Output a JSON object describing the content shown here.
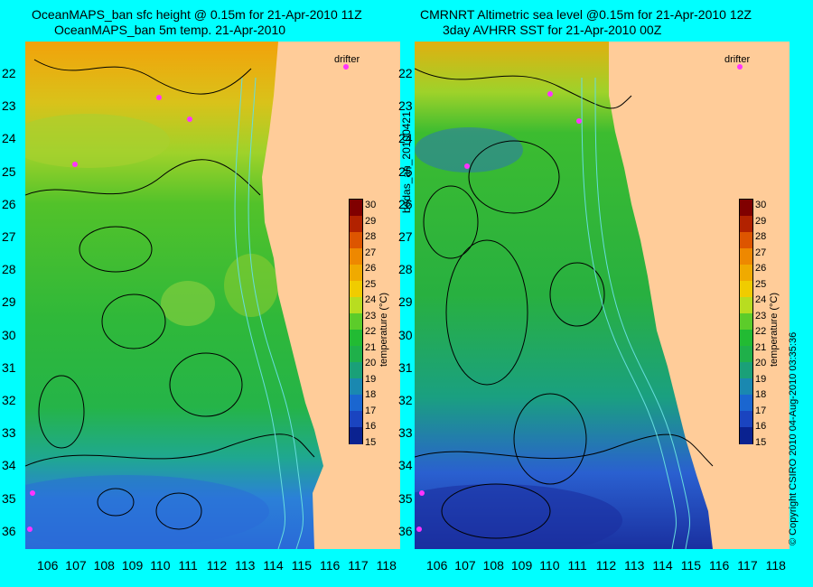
{
  "panels": [
    {
      "title_line1": "OceanMAPS_ban sfc height @ 0.15m for 21-Apr-2010 11Z",
      "title_line2": "OceanMAPS_ban 5m temp. 21-Apr-2010"
    },
    {
      "title_line1": "CMRNRT Altimetric sea level  @0.15m  for 21-Apr-2010 12Z",
      "title_line2": "3day AVHRR SST for 21-Apr-2010 00Z"
    }
  ],
  "axes": {
    "lat_labels": [
      "22",
      "23",
      "24",
      "25",
      "26",
      "27",
      "28",
      "29",
      "30",
      "31",
      "32",
      "33",
      "34",
      "35",
      "36"
    ],
    "lon_labels": [
      "106",
      "107",
      "108",
      "109",
      "110",
      "111",
      "112",
      "113",
      "114",
      "115",
      "116",
      "117",
      "118"
    ]
  },
  "colorbar": {
    "title": "temperature (°C)",
    "ticks": [
      "30",
      "29",
      "28",
      "27",
      "26",
      "25",
      "24",
      "23",
      "22",
      "21",
      "20",
      "19",
      "18",
      "17",
      "16",
      "15"
    ],
    "colors": [
      "#800000",
      "#b22200",
      "#dd5500",
      "#ee8800",
      "#f0aa00",
      "#f0cc00",
      "#b8dd20",
      "#5ccc2a",
      "#22bb33",
      "#1fb04a",
      "#1aa078",
      "#1a88b0",
      "#1a66d0",
      "#1a44c0",
      "#0a2290"
    ]
  },
  "drifter_label": "drifter",
  "side_text_left": "bodas_an_20100421",
  "side_text_right": "© Copyright CSIRO 2010   04-Aug-2010 03:35:36",
  "colors": {
    "background": "#00ffff",
    "land": "#ffcc99",
    "drifter": "#ff33ff"
  }
}
